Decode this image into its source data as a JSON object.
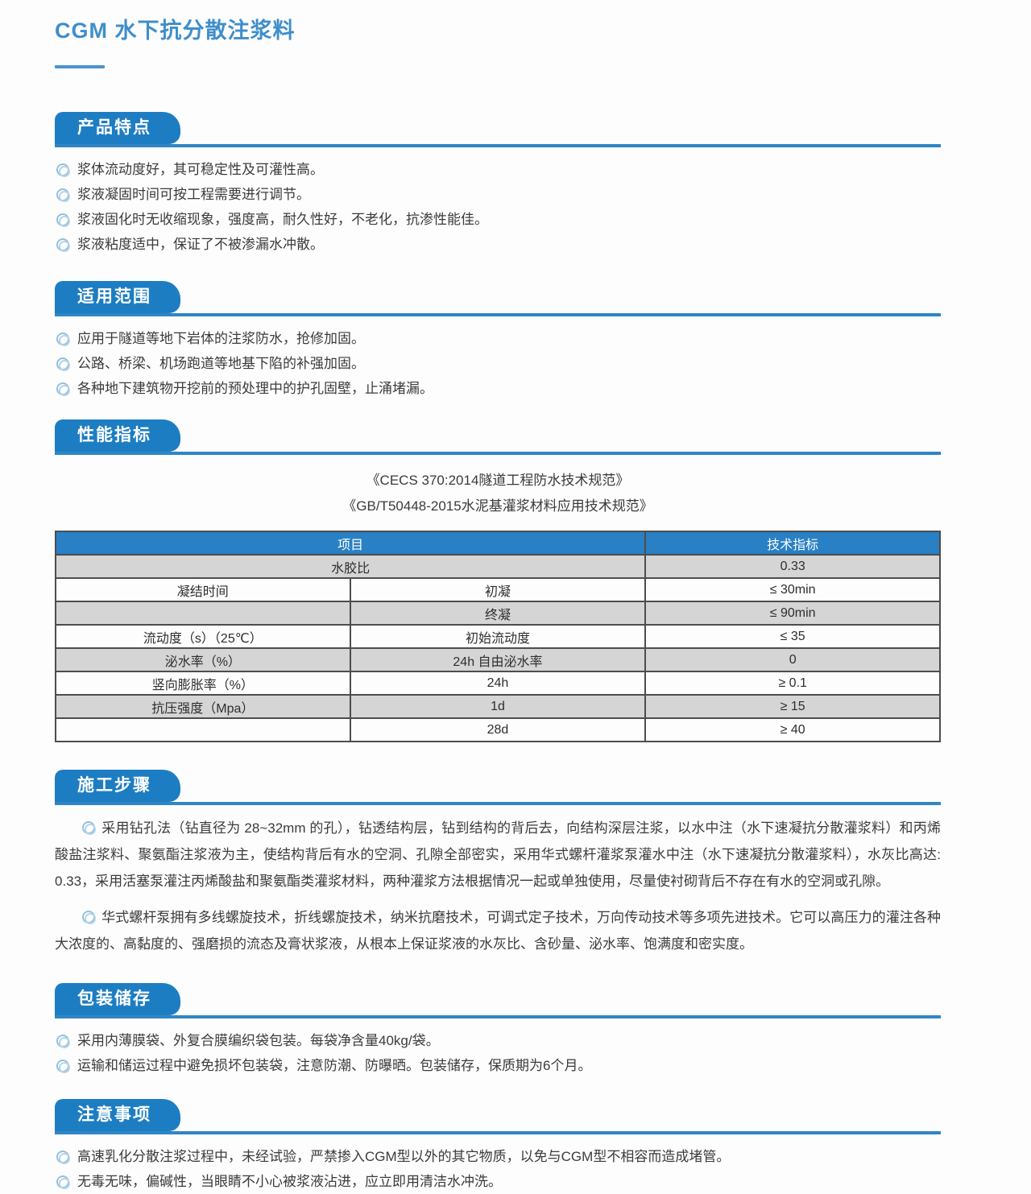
{
  "page": {
    "title": "CGM 水下抗分散注浆料"
  },
  "colors": {
    "title_blue": "#3e8ecb",
    "tab_blue": "#1d7dc2",
    "rule_blue": "#2f86c5",
    "table_header_blue": "#2980c4",
    "table_row_gray": "#d5d5d5",
    "table_border": "#4d4d4d",
    "bullet_blue": "#93c0dd",
    "body_text": "#3b3b3b"
  },
  "icons": {
    "bullet": "double-circle (bullseye)"
  },
  "sections": [
    {
      "heading": "产品特点",
      "bullets": [
        "浆体流动度好，其可稳定性及可灌性高。",
        "浆液凝固时间可按工程需要进行调节。",
        "浆液固化时无收缩现象，强度高，耐久性好，不老化，抗渗性能佳。",
        "浆液粘度适中，保证了不被渗漏水冲散。"
      ]
    },
    {
      "heading": "适用范围",
      "bullets": [
        "应用于隧道等地下岩体的注浆防水，抢修加固。",
        "公路、桥梁、机场跑道等地基下陷的补强加固。",
        "各种地下建筑物开挖前的预处理中的护孔固壁，止涌堵漏。"
      ]
    },
    {
      "heading": "性能指标",
      "citations": [
        "《CECS 370:2014隧道工程防水技术规范》",
        "《GB/T50448-2015水泥基灌浆材料应用技术规范》"
      ],
      "table": {
        "header": [
          {
            "text": "项目",
            "colspan": 2
          },
          {
            "text": "技术指标",
            "colspan": 1
          }
        ],
        "rows": [
          {
            "shade": "gray",
            "cells": [
              {
                "text": "水胶比",
                "colspan": 2
              },
              {
                "text": "0.33"
              }
            ]
          },
          {
            "shade": "white",
            "cells": [
              {
                "text": "凝结时间"
              },
              {
                "text": "初凝"
              },
              {
                "text": "≤ 30min"
              }
            ]
          },
          {
            "shade": "gray",
            "cells": [
              {
                "text": ""
              },
              {
                "text": "终凝"
              },
              {
                "text": "≤ 90min"
              }
            ]
          },
          {
            "shade": "white",
            "cells": [
              {
                "text": "流动度（s）（25℃）"
              },
              {
                "text": "初始流动度"
              },
              {
                "text": "≤ 35"
              }
            ]
          },
          {
            "shade": "gray",
            "cells": [
              {
                "text": "泌水率（%）"
              },
              {
                "text": "24h 自由泌水率"
              },
              {
                "text": "0"
              }
            ]
          },
          {
            "shade": "white",
            "cells": [
              {
                "text": "竖向膨胀率（%）"
              },
              {
                "text": "24h"
              },
              {
                "text": "≥ 0.1"
              }
            ]
          },
          {
            "shade": "gray",
            "cells": [
              {
                "text": "抗压强度（Mpa）"
              },
              {
                "text": "1d"
              },
              {
                "text": "≥ 15"
              }
            ]
          },
          {
            "shade": "white",
            "cells": [
              {
                "text": ""
              },
              {
                "text": "28d"
              },
              {
                "text": "≥ 40"
              }
            ]
          }
        ]
      }
    },
    {
      "heading": "施工步骤",
      "paragraphs": [
        "采用钻孔法（钻直径为 28~32mm 的孔），钻透结构层，钻到结构的背后去，向结构深层注浆，以水中注（水下速凝抗分散灌浆料）和丙烯酸盐注浆料、聚氨酯注浆液为主，使结构背后有水的空洞、孔隙全部密实，采用华式螺杆灌浆泵灌水中注（水下速凝抗分散灌浆料），水灰比高达: 0.33，采用活塞泵灌注丙烯酸盐和聚氨酯类灌浆材料，两种灌浆方法根据情况一起或单独使用，尽量使衬砌背后不存在有水的空洞或孔隙。",
        "华式螺杆泵拥有多线螺旋技术，折线螺旋技术，纳米抗磨技术，可调式定子技术，万向传动技术等多项先进技术。它可以高压力的灌注各种大浓度的、高黏度的、强磨损的流态及膏状浆液，从根本上保证浆液的水灰比、含砂量、泌水率、饱满度和密实度。"
      ]
    },
    {
      "heading": "包装储存",
      "bullets": [
        "采用内薄膜袋、外复合膜编织袋包装。每袋净含量40kg/袋。",
        "运输和储运过程中避免损坏包装袋，注意防潮、防曝晒。包装储存，保质期为6个月。"
      ]
    },
    {
      "heading": "注意事项",
      "bullets": [
        "高速乳化分散注浆过程中，未经试验，严禁掺入CGM型以外的其它物质，以免与CGM型不相容而造成堵管。",
        "无毒无味，偏碱性，当眼睛不小心被浆液沾进，应立即用清洁水冲洗。"
      ]
    }
  ]
}
